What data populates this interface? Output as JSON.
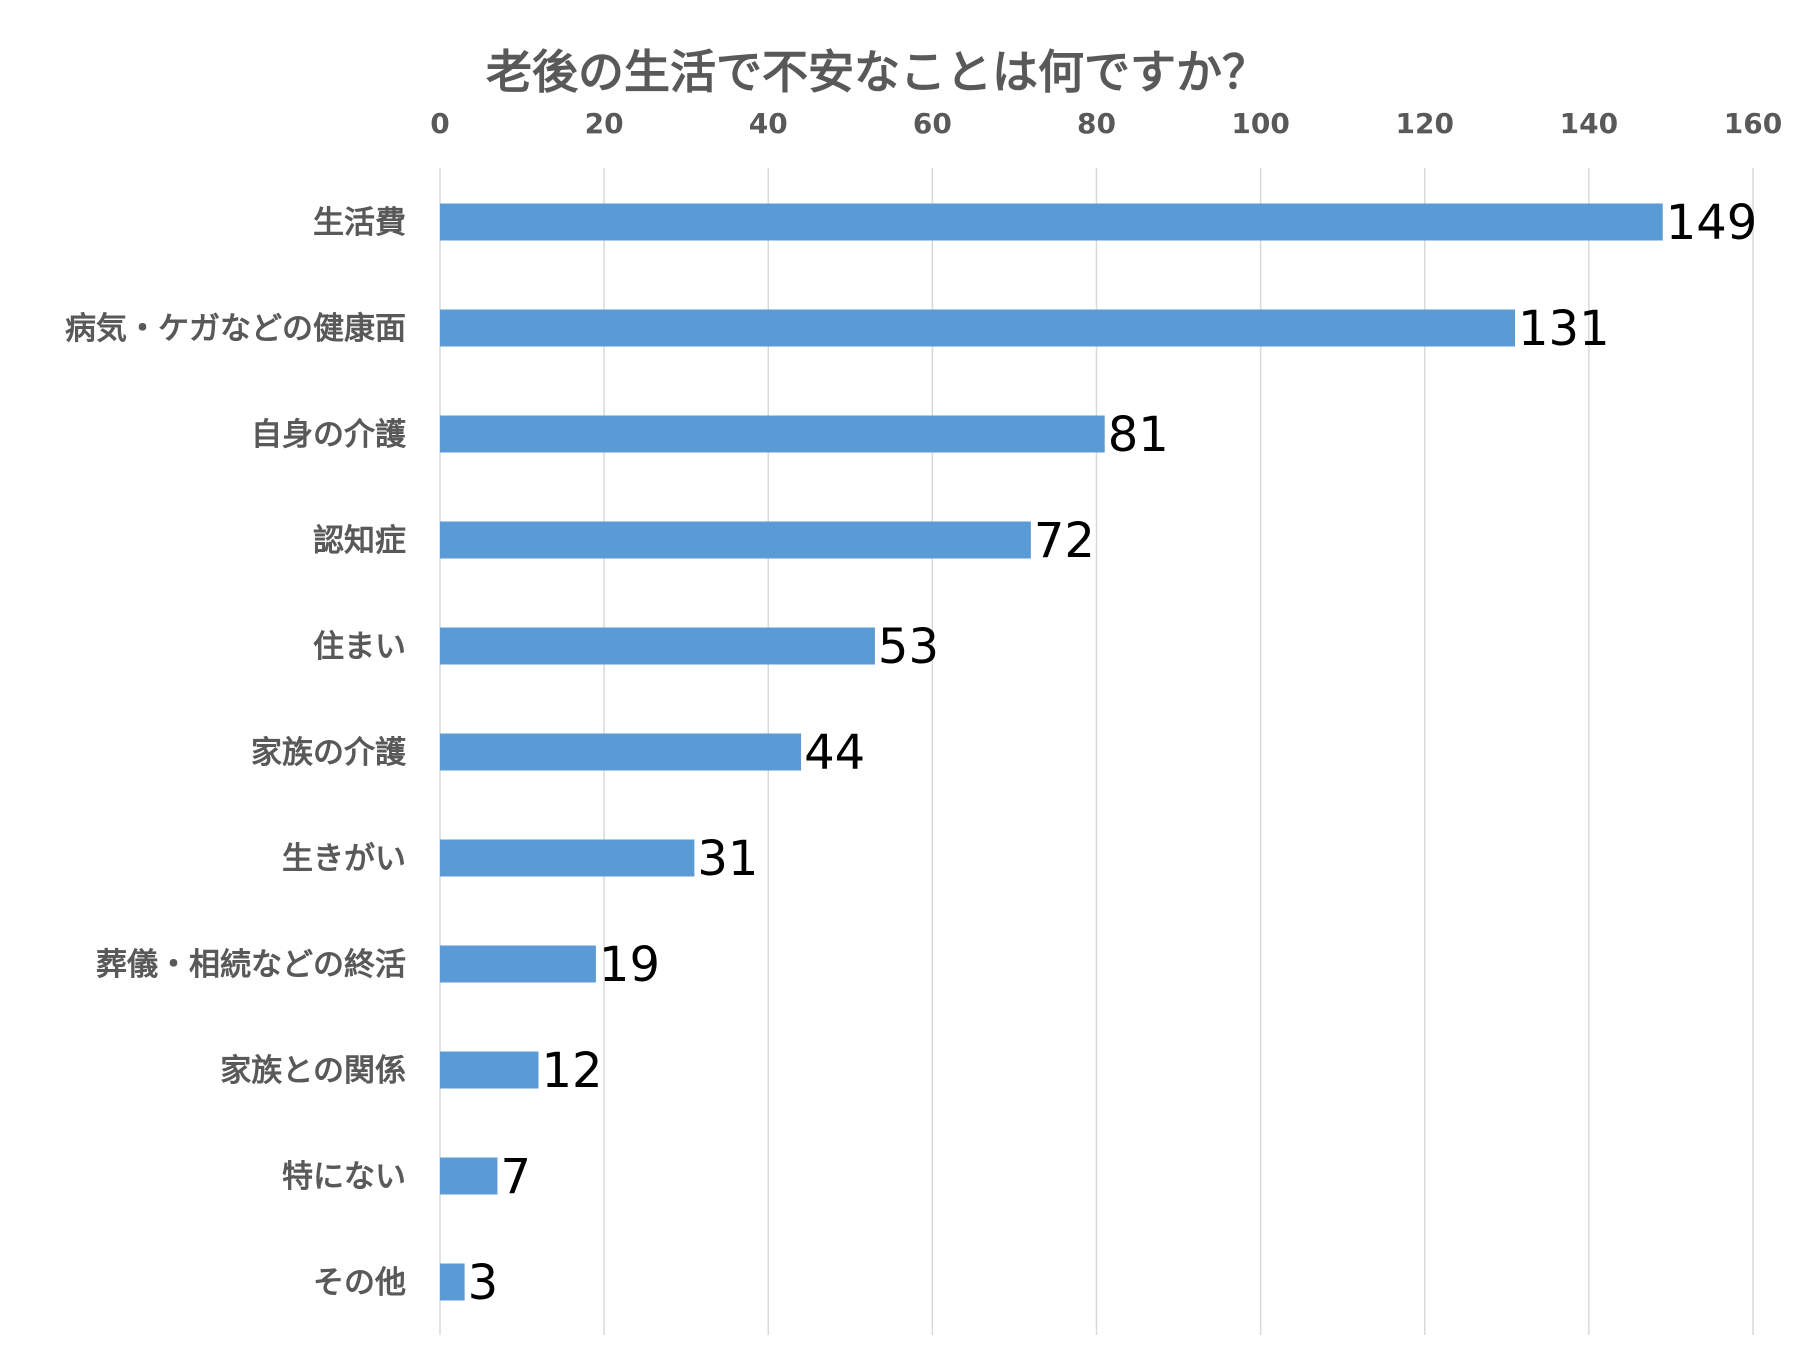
{
  "chart_data": {
    "type": "bar",
    "orientation": "horizontal",
    "title": "老後の生活で不安なことは何ですか？",
    "xlabel": "",
    "ylabel": "",
    "xlim": [
      0,
      160
    ],
    "x_ticks": [
      0,
      20,
      40,
      60,
      80,
      100,
      120,
      140,
      160
    ],
    "x_axis_position": "top",
    "grid": true,
    "legend": "none",
    "categories": [
      "生活費",
      "病気・ケガなどの健康面",
      "自身の介護",
      "認知症",
      "住まい",
      "家族の介護",
      "生きがい",
      "葬儀・相続などの終活",
      "家族との関係",
      "特にない",
      "その他"
    ],
    "values": [
      149,
      131,
      81,
      72,
      53,
      44,
      31,
      19,
      12,
      7,
      3
    ],
    "bar_color": "#5b9bd5",
    "gridline_color": "#d9d9d9",
    "axis_text_color": "#595959",
    "data_label_color": "#000000"
  }
}
